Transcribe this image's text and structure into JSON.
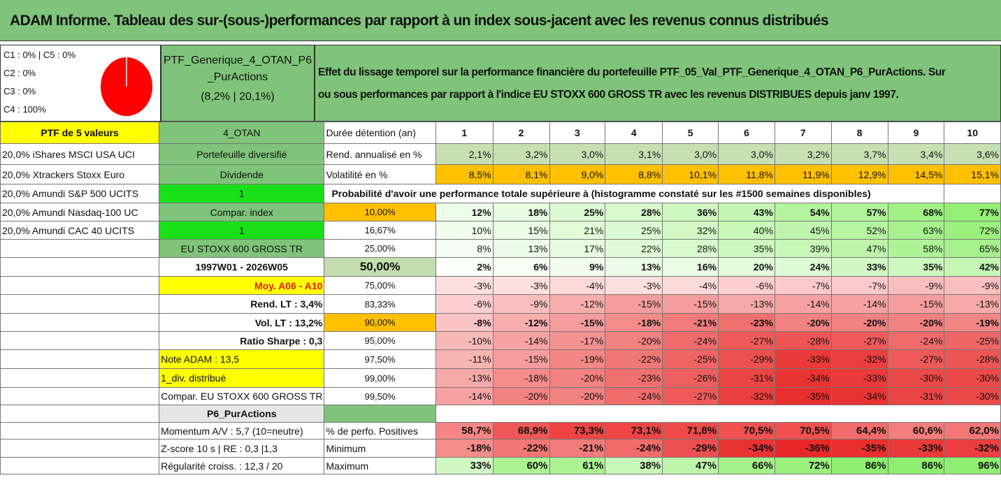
{
  "title": "ADAM Informe. Tableau des sur-(sous-)performances par rapport à un index sous-jacent avec les revenus connus distribués",
  "header": {
    "classes": [
      "C1 : 0% | C5 : 0%",
      "C2 : 0%",
      "C3 : 0%",
      "C4 : 100%"
    ],
    "pie_share_C4": 1.0,
    "portfolio_name_line1": "PTF_Generique_4_OTAN_P6",
    "portfolio_name_line2": "_PurActions",
    "portfolio_stats": "(8,2% | 20,1%)",
    "description_line1": "Effet du lissage temporel sur la performance financière du portefeuille PTF_05_Val_PTF_Generique_4_OTAN_P6_PurActions. Sur",
    "description_line2": "ou sous performances par rapport à l'indice EU STOXX 600 GROSS TR avec les revenus DISTRIBUES depuis janv 1997."
  },
  "colors": {
    "green": "#7FC47A",
    "yellow": "#FFFF00",
    "lime": "#1AE01A",
    "orange": "#FFC000",
    "light_green": "#C4DEB0",
    "red_text": "#E81C1C"
  },
  "left": {
    "ptf_label": "PTF de 5 valeurs",
    "holdings": [
      "20,0% iShares MSCI USA UCI",
      "20,0% Xtrackers Stoxx Euro",
      "20,0% Amundi S&P 500 UCITS",
      "20,0% Amundi Nasdaq-100 UC",
      "20,0% Amundi CAC 40 UCITS"
    ]
  },
  "mid": {
    "r0": "4_OTAN",
    "r1": "Portefeuille diversifié",
    "r2": "Dividende",
    "r3": "1",
    "r4": "Compar. index",
    "r5": "1",
    "r6": "EU STOXX 600 GROSS TR",
    "r7": "1997W01 - 2026W05",
    "r8": "Moy. A06 - A10",
    "r9": "Rend. LT : 3,4%",
    "r10": "Vol. LT : 13,2%",
    "r11": "Ratio Sharpe : 0,3",
    "r12": "Note ADAM : 13,5",
    "r13": "1_div. distribué",
    "r14": "Compar. EU STOXX 600 GROSS TR",
    "r15": "P6_PurActions",
    "r16": "Momentum A/V : 5,7 (10=neutre)",
    "r17": "Z-score 10 s | RE : 0,3 |1,3",
    "r18": "Régularité croiss. : 12,3 / 20"
  },
  "table": {
    "holding_label": "Durée détention (an)",
    "years": [
      "1",
      "2",
      "3",
      "4",
      "5",
      "6",
      "7",
      "8",
      "9",
      "10"
    ],
    "rend_label": "Rend. annualisé en %",
    "rend": [
      "2,1%",
      "3,2%",
      "3,0%",
      "3,1%",
      "3,0%",
      "3,0%",
      "3,2%",
      "3,7%",
      "3,4%",
      "3,6%"
    ],
    "vol_label": "Volatilité en %",
    "vol": [
      "8,5%",
      "8,1%",
      "9,0%",
      "8,8%",
      "10,1%",
      "11,8%",
      "11,9%",
      "12,9%",
      "14,5%",
      "15,1%"
    ],
    "prob_label": "Probabilité d'avoir une performance totale supérieure à (histogramme constaté sur les #1500 semaines disponibles)",
    "quantiles": [
      {
        "p": "10,00%",
        "v": [
          "12%",
          "18%",
          "25%",
          "28%",
          "36%",
          "43%",
          "54%",
          "57%",
          "68%",
          "77%"
        ]
      },
      {
        "p": "16,67%",
        "v": [
          "10%",
          "15%",
          "21%",
          "25%",
          "32%",
          "40%",
          "45%",
          "52%",
          "63%",
          "72%"
        ]
      },
      {
        "p": "25,00%",
        "v": [
          "8%",
          "13%",
          "17%",
          "22%",
          "28%",
          "35%",
          "39%",
          "47%",
          "58%",
          "65%"
        ]
      },
      {
        "p": "50,00%",
        "v": [
          "2%",
          "6%",
          "9%",
          "13%",
          "16%",
          "20%",
          "24%",
          "33%",
          "35%",
          "42%"
        ]
      },
      {
        "p": "75,00%",
        "v": [
          "-3%",
          "-3%",
          "-4%",
          "-3%",
          "-4%",
          "-6%",
          "-7%",
          "-7%",
          "-9%",
          "-9%"
        ]
      },
      {
        "p": "83,33%",
        "v": [
          "-6%",
          "-9%",
          "-12%",
          "-15%",
          "-15%",
          "-13%",
          "-14%",
          "-14%",
          "-15%",
          "-13%"
        ]
      },
      {
        "p": "90,00%",
        "v": [
          "-8%",
          "-12%",
          "-15%",
          "-18%",
          "-21%",
          "-23%",
          "-20%",
          "-20%",
          "-20%",
          "-19%"
        ]
      },
      {
        "p": "95,00%",
        "v": [
          "-10%",
          "-14%",
          "-17%",
          "-20%",
          "-24%",
          "-27%",
          "-28%",
          "-27%",
          "-24%",
          "-25%"
        ]
      },
      {
        "p": "97,50%",
        "v": [
          "-11%",
          "-15%",
          "-19%",
          "-22%",
          "-25%",
          "-29%",
          "-33%",
          "-32%",
          "-27%",
          "-28%"
        ]
      },
      {
        "p": "99,00%",
        "v": [
          "-13%",
          "-18%",
          "-20%",
          "-23%",
          "-26%",
          "-31%",
          "-34%",
          "-33%",
          "-30%",
          "-30%"
        ]
      },
      {
        "p": "99,50%",
        "v": [
          "-14%",
          "-20%",
          "-20%",
          "-24%",
          "-27%",
          "-32%",
          "-35%",
          "-34%",
          "-31%",
          "-30%"
        ]
      }
    ],
    "pos_label": "% de perfo. Positives",
    "pos": [
      "58,7%",
      "68,9%",
      "73,3%",
      "73,1%",
      "71,8%",
      "70,5%",
      "70,5%",
      "64,4%",
      "60,6%",
      "62,0%"
    ],
    "min_label": "Minimum",
    "min": [
      "-18%",
      "-22%",
      "-21%",
      "-24%",
      "-29%",
      "-34%",
      "-36%",
      "-35%",
      "-33%",
      "-32%"
    ],
    "max_label": "Maximum",
    "max": [
      "33%",
      "60%",
      "61%",
      "38%",
      "47%",
      "66%",
      "72%",
      "86%",
      "86%",
      "96%"
    ]
  }
}
